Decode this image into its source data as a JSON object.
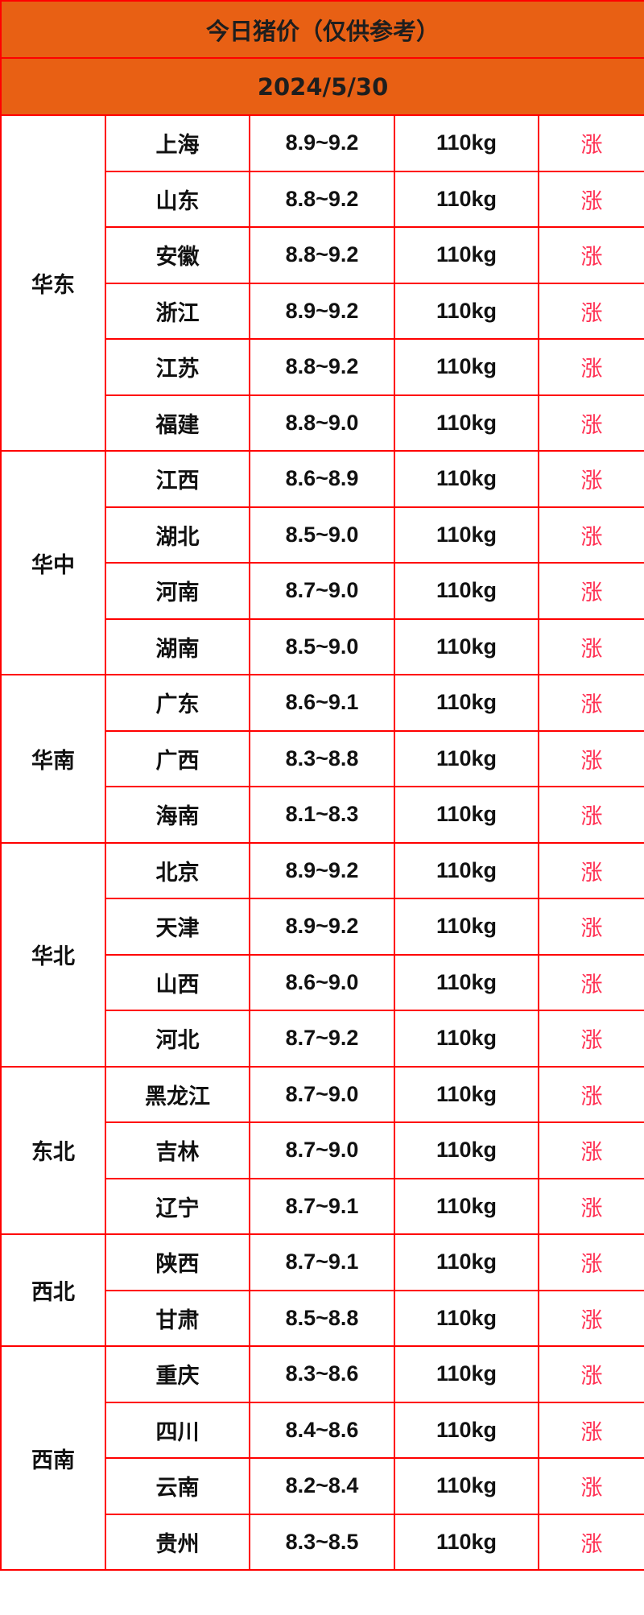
{
  "title": "今日猪价（仅供参考）",
  "date": "2024/5/30",
  "colors": {
    "header_bg": "#e86014",
    "border": "#ff0000",
    "trend": "#ff3355"
  },
  "regions": [
    {
      "name": "华东",
      "rows": [
        {
          "province": "上海",
          "price": "8.9~9.2",
          "weight": "110kg",
          "trend": "涨"
        },
        {
          "province": "山东",
          "price": "8.8~9.2",
          "weight": "110kg",
          "trend": "涨"
        },
        {
          "province": "安徽",
          "price": "8.8~9.2",
          "weight": "110kg",
          "trend": "涨"
        },
        {
          "province": "浙江",
          "price": "8.9~9.2",
          "weight": "110kg",
          "trend": "涨"
        },
        {
          "province": "江苏",
          "price": "8.8~9.2",
          "weight": "110kg",
          "trend": "涨"
        },
        {
          "province": "福建",
          "price": "8.8~9.0",
          "weight": "110kg",
          "trend": "涨"
        }
      ]
    },
    {
      "name": "华中",
      "rows": [
        {
          "province": "江西",
          "price": "8.6~8.9",
          "weight": "110kg",
          "trend": "涨"
        },
        {
          "province": "湖北",
          "price": "8.5~9.0",
          "weight": "110kg",
          "trend": "涨"
        },
        {
          "province": "河南",
          "price": "8.7~9.0",
          "weight": "110kg",
          "trend": "涨"
        },
        {
          "province": "湖南",
          "price": "8.5~9.0",
          "weight": "110kg",
          "trend": "涨"
        }
      ]
    },
    {
      "name": "华南",
      "rows": [
        {
          "province": "广东",
          "price": "8.6~9.1",
          "weight": "110kg",
          "trend": "涨"
        },
        {
          "province": "广西",
          "price": "8.3~8.8",
          "weight": "110kg",
          "trend": "涨"
        },
        {
          "province": "海南",
          "price": "8.1~8.3",
          "weight": "110kg",
          "trend": "涨"
        }
      ]
    },
    {
      "name": "华北",
      "rows": [
        {
          "province": "北京",
          "price": "8.9~9.2",
          "weight": "110kg",
          "trend": "涨"
        },
        {
          "province": "天津",
          "price": "8.9~9.2",
          "weight": "110kg",
          "trend": "涨"
        },
        {
          "province": "山西",
          "price": "8.6~9.0",
          "weight": "110kg",
          "trend": "涨"
        },
        {
          "province": "河北",
          "price": "8.7~9.2",
          "weight": "110kg",
          "trend": "涨"
        }
      ]
    },
    {
      "name": "东北",
      "rows": [
        {
          "province": "黑龙江",
          "price": "8.7~9.0",
          "weight": "110kg",
          "trend": "涨"
        },
        {
          "province": "吉林",
          "price": "8.7~9.0",
          "weight": "110kg",
          "trend": "涨"
        },
        {
          "province": "辽宁",
          "price": "8.7~9.1",
          "weight": "110kg",
          "trend": "涨"
        }
      ]
    },
    {
      "name": "西北",
      "rows": [
        {
          "province": "陕西",
          "price": "8.7~9.1",
          "weight": "110kg",
          "trend": "涨"
        },
        {
          "province": "甘肃",
          "price": "8.5~8.8",
          "weight": "110kg",
          "trend": "涨"
        }
      ]
    },
    {
      "name": "西南",
      "rows": [
        {
          "province": "重庆",
          "price": "8.3~8.6",
          "weight": "110kg",
          "trend": "涨"
        },
        {
          "province": "四川",
          "price": "8.4~8.6",
          "weight": "110kg",
          "trend": "涨"
        },
        {
          "province": "云南",
          "price": "8.2~8.4",
          "weight": "110kg",
          "trend": "涨"
        },
        {
          "province": "贵州",
          "price": "8.3~8.5",
          "weight": "110kg",
          "trend": "涨"
        }
      ]
    }
  ]
}
